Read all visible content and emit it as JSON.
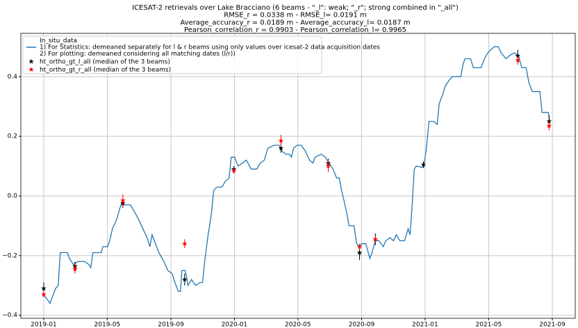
{
  "chart_data": {
    "type": "line",
    "title": [
      "ICESAT-2 retrievals over Lake Bracciano (6 beams - \"_l\": weak; \"_r\"; strong combined in \"_all\")",
      "RMSE_r = 0.0338 m  - RMSE_l= 0.0191 m",
      "Average_accuracy_r = 0.0189 m - Average_accuracy_l= 0.0187  m",
      "Pearson_correlation_r = 0.9903 - Pearson_correlation_l= 0.9965"
    ],
    "xlim": [
      2018.88,
      2021.787
    ],
    "ylim": [
      -0.41,
      0.545
    ],
    "xticks": [
      {
        "value": 2019.0,
        "label": "2019-01"
      },
      {
        "value": 2019.333,
        "label": "2019-05"
      },
      {
        "value": 2019.667,
        "label": "2019-09"
      },
      {
        "value": 2020.0,
        "label": "2020-01"
      },
      {
        "value": 2020.333,
        "label": "2020-05"
      },
      {
        "value": 2020.667,
        "label": "2020-09"
      },
      {
        "value": 2021.0,
        "label": "2021-01"
      },
      {
        "value": 2021.333,
        "label": "2021-05"
      },
      {
        "value": 2021.667,
        "label": "2021-09"
      }
    ],
    "yticks": [
      {
        "value": -0.4,
        "label": "−0.4"
      },
      {
        "value": -0.2,
        "label": "−0.2"
      },
      {
        "value": 0,
        "label": "0.0"
      },
      0.2,
      0.4
    ],
    "grid": true,
    "legend": "upper left",
    "series": [
      {
        "name": "In_situ_data\n1) For Statistics: demeaned separately for l & r beams using only values over icesat-2 data acquisition dates\n2) For plotting: demeaned considering all matching dates (l/r))",
        "color": "#1f77b4",
        "x": [
          2019.0,
          2019.033,
          2019.062,
          2019.076,
          2019.087,
          2019.124,
          2019.135,
          2019.156,
          2019.178,
          2019.215,
          2019.237,
          2019.247,
          2019.258,
          2019.302,
          2019.309,
          2019.335,
          2019.346,
          2019.36,
          2019.382,
          2019.4,
          2019.411,
          2019.422,
          2019.455,
          2019.473,
          2019.499,
          2019.52,
          2019.542,
          2019.557,
          2019.568,
          2019.586,
          2019.604,
          2019.63,
          2019.651,
          2019.673,
          2019.688,
          2019.706,
          2019.717,
          2019.724,
          2019.742,
          2019.757,
          2019.775,
          2019.797,
          2019.819,
          2019.833,
          2019.844,
          2019.862,
          2019.877,
          2019.892,
          2019.91,
          2019.935,
          2019.953,
          2019.972,
          2019.983,
          2020.001,
          2020.019,
          2020.041,
          2020.063,
          2020.088,
          2020.117,
          2020.135,
          2020.157,
          2020.175,
          2020.208,
          2020.234,
          2020.248,
          2020.27,
          2020.288,
          2020.299,
          2020.31,
          2020.328,
          2020.35,
          2020.372,
          2020.394,
          2020.412,
          2020.423,
          2020.456,
          2020.477,
          2020.496,
          2020.517,
          2020.536,
          2020.55,
          2020.561,
          2020.576,
          2020.59,
          2020.601,
          2020.627,
          2020.641,
          2020.656,
          2020.667,
          2020.689,
          2020.71,
          2020.721,
          2020.739,
          2020.758,
          2020.78,
          2020.794,
          2020.816,
          2020.834,
          2020.849,
          2020.867,
          2020.892,
          2020.911,
          2020.921,
          2020.932,
          2020.943,
          2020.954,
          2020.991,
          2021.005,
          2021.02,
          2021.045,
          2021.063,
          2021.074,
          2021.092,
          2021.107,
          2021.129,
          2021.143,
          2021.187,
          2021.198,
          2021.209,
          2021.238,
          2021.253,
          2021.293,
          2021.311,
          2021.329,
          2021.344,
          2021.362,
          2021.384,
          2021.398,
          2021.424,
          2021.442,
          2021.467,
          2021.489,
          2021.507,
          2021.529,
          2021.544,
          2021.562,
          2021.602,
          2021.613,
          2021.646,
          2021.653
        ],
        "values": [
          -0.33,
          -0.36,
          -0.31,
          -0.3,
          -0.19,
          -0.19,
          -0.21,
          -0.23,
          -0.22,
          -0.22,
          -0.23,
          -0.24,
          -0.19,
          -0.19,
          -0.17,
          -0.17,
          -0.15,
          -0.11,
          -0.08,
          -0.04,
          -0.02,
          -0.03,
          -0.03,
          -0.05,
          -0.08,
          -0.11,
          -0.14,
          -0.17,
          -0.13,
          -0.16,
          -0.19,
          -0.22,
          -0.25,
          -0.26,
          -0.29,
          -0.32,
          -0.32,
          -0.25,
          -0.25,
          -0.3,
          -0.28,
          -0.3,
          -0.29,
          -0.29,
          -0.22,
          -0.13,
          -0.07,
          0.02,
          0.03,
          0.03,
          0.05,
          0.06,
          0.13,
          0.13,
          0.1,
          0.11,
          0.12,
          0.09,
          0.09,
          0.11,
          0.12,
          0.16,
          0.17,
          0.17,
          0.15,
          0.14,
          0.14,
          0.13,
          0.16,
          0.17,
          0.17,
          0.15,
          0.12,
          0.11,
          0.13,
          0.14,
          0.13,
          0.11,
          0.09,
          0.06,
          0.06,
          0.02,
          -0.02,
          -0.06,
          -0.1,
          -0.1,
          -0.16,
          -0.17,
          -0.16,
          -0.16,
          -0.21,
          -0.19,
          -0.15,
          -0.15,
          -0.17,
          -0.15,
          -0.14,
          -0.15,
          -0.13,
          -0.15,
          -0.15,
          -0.11,
          -0.13,
          -0.03,
          0.09,
          0.1,
          0.095,
          0.15,
          0.25,
          0.25,
          0.24,
          0.31,
          0.34,
          0.37,
          0.39,
          0.4,
          0.4,
          0.44,
          0.46,
          0.46,
          0.43,
          0.43,
          0.46,
          0.48,
          0.49,
          0.5,
          0.5,
          0.48,
          0.46,
          0.47,
          0.48,
          0.47,
          0.43,
          0.43,
          0.38,
          0.35,
          0.35,
          0.28,
          0.28,
          0.25
        ]
      },
      {
        "name": "ht_ortho_gt_l_all (median of the 3 beams)",
        "color": "#000000",
        "marker": "star",
        "x": [
          2019.0,
          2019.164,
          2019.415,
          2019.739,
          2019.997,
          2020.244,
          2020.492,
          2020.656,
          2020.739,
          2020.991,
          2021.486,
          2021.65
        ],
        "values": [
          -0.31,
          -0.235,
          -0.025,
          -0.28,
          0.09,
          0.16,
          0.11,
          -0.19,
          -0.145,
          0.105,
          0.47,
          0.25
        ],
        "errors": [
          0.02,
          0.015,
          0.015,
          0.02,
          0.01,
          0.015,
          0.015,
          0.025,
          0.02,
          0.01,
          0.02,
          0.02
        ]
      },
      {
        "name": "ht_ortho_gt_r_all (median of the 3 beams)",
        "color": "#ff0000",
        "marker": "star",
        "x": [
          2019.0,
          2019.164,
          2019.415,
          2019.739,
          2019.997,
          2020.244,
          2020.492,
          2020.656,
          2020.739,
          2020.991,
          2021.486,
          2021.65
        ],
        "values": [
          -0.33,
          -0.245,
          -0.015,
          -0.16,
          0.085,
          0.185,
          0.1,
          -0.17,
          -0.145,
          null,
          0.455,
          0.235
        ],
        "errors": [
          0.01,
          0.015,
          0.02,
          0.015,
          0.01,
          0.02,
          0.02,
          0.01,
          0.01,
          null,
          0.015,
          0.015
        ]
      }
    ]
  }
}
